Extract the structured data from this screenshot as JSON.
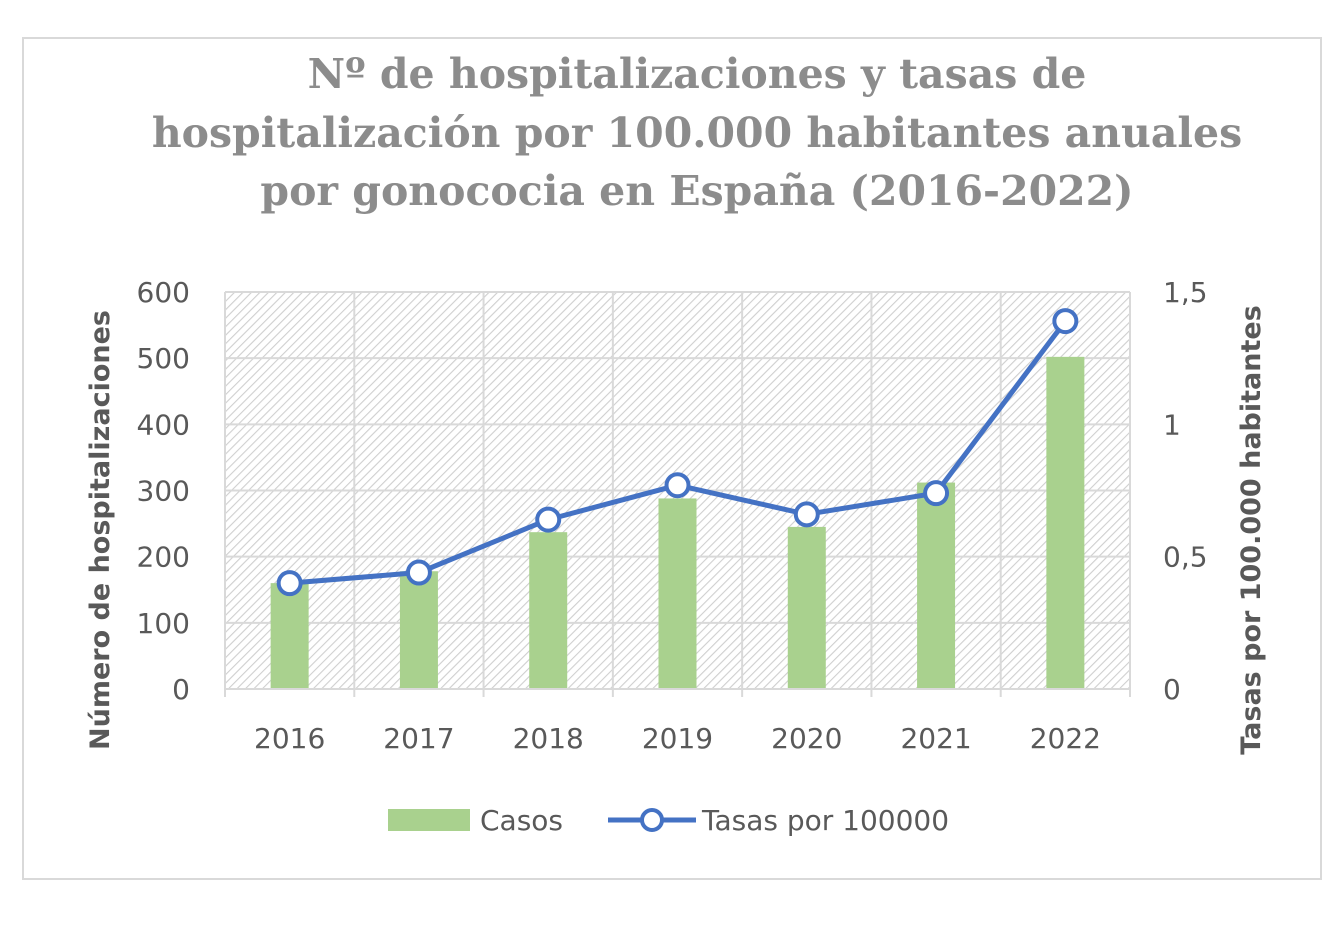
{
  "chart_data": {
    "type": "bar",
    "title_lines": [
      "Nº de hospitalizaciones y tasas de",
      "hospitalización por 100.000 habitantes anuales",
      "por gonococia en España (2016-2022)"
    ],
    "categories": [
      "2016",
      "2017",
      "2018",
      "2019",
      "2020",
      "2021",
      "2022"
    ],
    "series": [
      {
        "name": "Casos",
        "type": "bar",
        "axis": "left",
        "color": "#a9d18e",
        "values": [
          160,
          178,
          237,
          288,
          245,
          312,
          502
        ]
      },
      {
        "name": "Tasas por 100000",
        "type": "line",
        "axis": "right",
        "color": "#4472c4",
        "values": [
          0.4,
          0.44,
          0.64,
          0.77,
          0.66,
          0.74,
          1.39
        ]
      }
    ],
    "ylabel": "Número de hospitalizaciones",
    "y2label": "Tasas por 100.000 habitantes",
    "ylim": [
      0,
      600
    ],
    "y2lim": [
      0,
      1.5
    ],
    "yticks": [
      "0",
      "100",
      "200",
      "300",
      "400",
      "500",
      "600"
    ],
    "y2ticks": [
      "0",
      "0,5",
      "1",
      "1,5"
    ],
    "grid": true,
    "legend_position": "bottom"
  }
}
